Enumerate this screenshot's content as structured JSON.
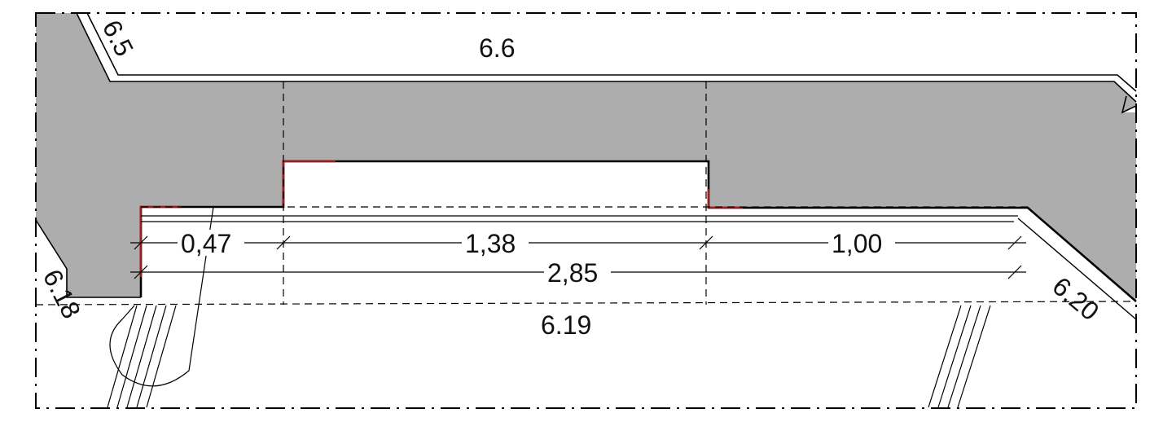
{
  "colors": {
    "fill": "#adadad",
    "line": "#000000",
    "accent": "#9b1c1c",
    "background": "#ffffff"
  },
  "labels": {
    "top_room": "6.6",
    "corner_upper_left": "6.5",
    "lower_left": "6.18",
    "bottom_room": "6.19",
    "lower_right": "6.20"
  },
  "dimensions": {
    "seg_1": "0,47",
    "seg_2": "1,38",
    "seg_3": "1,00",
    "total": "2,85"
  }
}
